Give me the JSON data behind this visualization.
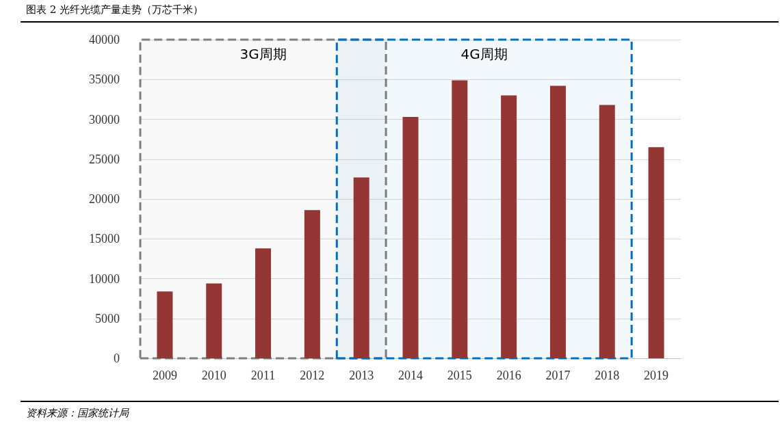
{
  "chart_data": {
    "type": "bar",
    "title": "图表 2 光纤光缆产量走势（万芯千米）",
    "categories": [
      "2009",
      "2010",
      "2011",
      "2012",
      "2013",
      "2014",
      "2015",
      "2016",
      "2017",
      "2018",
      "2019"
    ],
    "values": [
      8400,
      9400,
      13800,
      18600,
      22700,
      30300,
      34900,
      33000,
      34200,
      31800,
      26500
    ],
    "color": "#943634",
    "ylim": [
      0,
      40000
    ],
    "yticks": [
      0,
      5000,
      10000,
      15000,
      20000,
      25000,
      30000,
      35000,
      40000
    ],
    "grid": "y",
    "bands": [
      {
        "axis": "x",
        "from": "2009",
        "to": "2013",
        "label": "3G周期",
        "color": "#7f7f7f"
      },
      {
        "axis": "x",
        "from": "2013",
        "to": "2018",
        "label": "4G周期",
        "color": "#0070c0"
      }
    ],
    "annotations": [
      "资料来源：国家统计局"
    ]
  }
}
